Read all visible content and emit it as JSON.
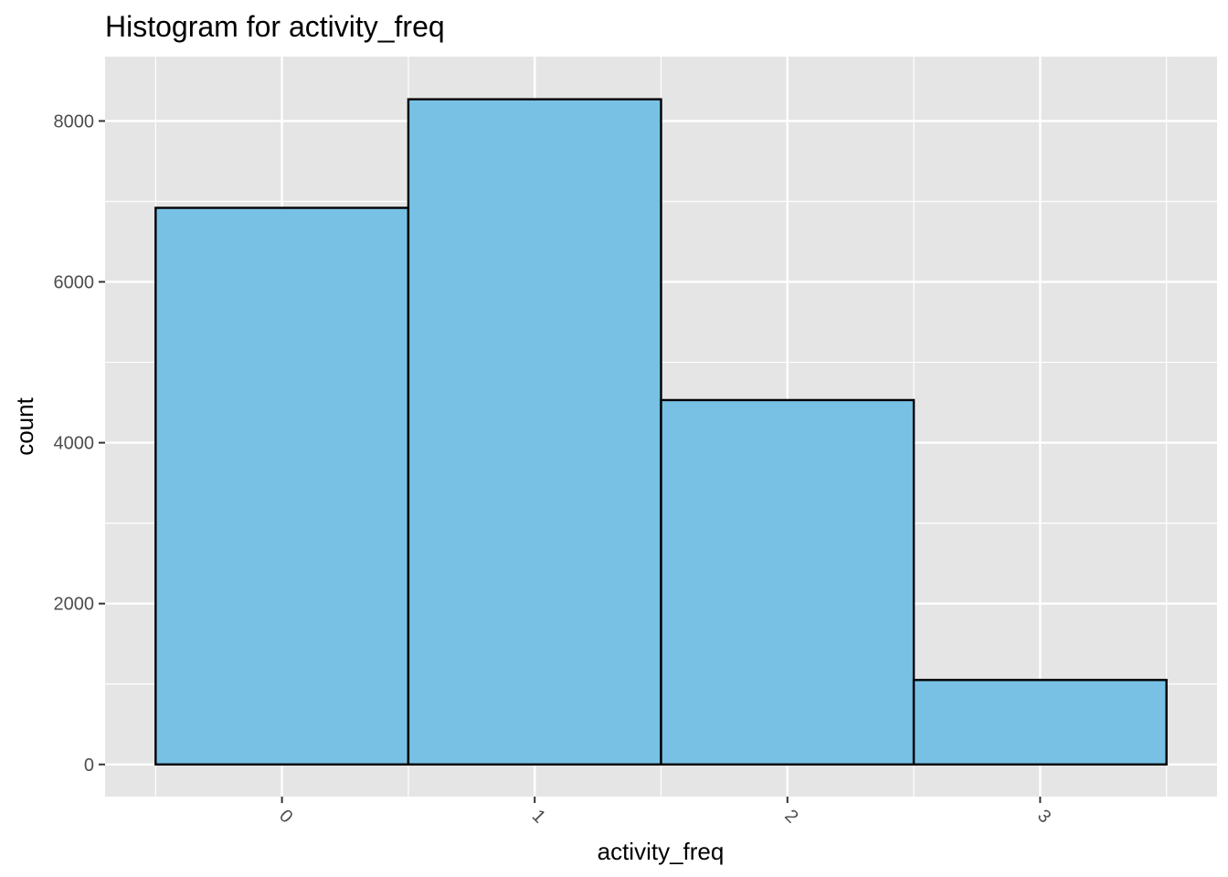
{
  "chart_data": {
    "type": "bar",
    "title": "Histogram for activity_freq",
    "xlabel": "activity_freq",
    "ylabel": "count",
    "categories": [
      "0",
      "1",
      "2",
      "3"
    ],
    "values": [
      6920,
      8270,
      4530,
      1050
    ],
    "x_ticks": [
      "0",
      "1",
      "2",
      "3"
    ],
    "y_ticks": [
      0,
      2000,
      4000,
      6000,
      8000
    ],
    "ylim": [
      -400,
      8800
    ],
    "xlim": [
      -0.7,
      3.7
    ],
    "grid": true,
    "x_tick_rotation": "45-degree",
    "bar_fill": "#78c1e5",
    "bar_stroke": "#000000",
    "panel_background": "#e5e5e5",
    "gridline_color": "#ffffff"
  }
}
